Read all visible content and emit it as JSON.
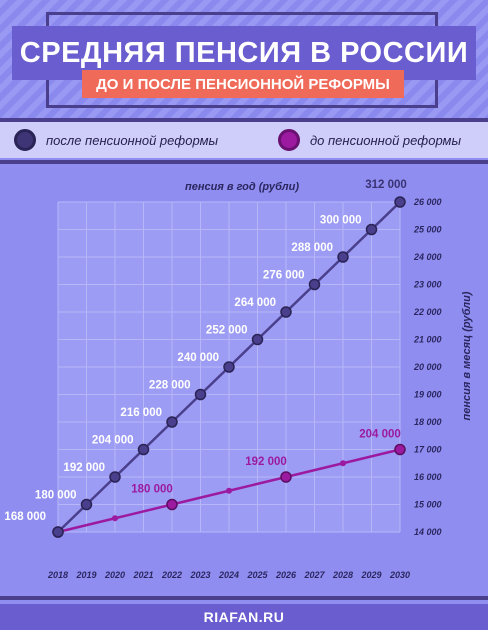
{
  "header": {
    "title": "СРЕДНЯЯ ПЕНСИЯ В РОССИИ",
    "subtitle": "ДО И ПОСЛЕ ПЕНСИОННОЙ РЕФОРМЫ"
  },
  "legend": {
    "after": "после пенсионной реформы",
    "before": "до пенсионной реформы"
  },
  "footer": {
    "source": "RIAFAN.RU"
  },
  "colors": {
    "after": "#4a3f8c",
    "before": "#9b1aa0",
    "background": "#8f8ef0",
    "title_box": "#6a5dcf",
    "subtitle_box": "#f06a5a"
  },
  "chart_data": {
    "type": "line",
    "xlabel": "",
    "ylabel_left": "пенсия в год (рубли)",
    "ylabel_right": "пенсия в месяц (рубли)",
    "x": [
      2018,
      2019,
      2020,
      2021,
      2022,
      2023,
      2024,
      2025,
      2026,
      2027,
      2028,
      2029,
      2030
    ],
    "x_tick_labels": [
      "2018",
      "2019",
      "2020",
      "2021",
      "2022",
      "2023",
      "2024",
      "2025",
      "2026",
      "2027",
      "2028",
      "2029",
      "2030"
    ],
    "y_right_ticks": [
      14000,
      15000,
      16000,
      17000,
      18000,
      19000,
      20000,
      21000,
      22000,
      23000,
      24000,
      25000,
      26000
    ],
    "y_right_tick_labels": [
      "14 000",
      "15 000",
      "16 000",
      "17 000",
      "18 000",
      "19 000",
      "20 000",
      "21 000",
      "22 000",
      "23 000",
      "24 000",
      "25 000",
      "26 000"
    ],
    "ylim_monthly": [
      14000,
      26000
    ],
    "grid": true,
    "series": [
      {
        "name": "после пенсионной реформы",
        "monthly": [
          14000,
          15000,
          16000,
          17000,
          18000,
          19000,
          20000,
          21000,
          22000,
          23000,
          24000,
          25000,
          26000
        ],
        "labels": [
          "168 000",
          "180 000",
          "192 000",
          "204 000",
          "216 000",
          "228 000",
          "240 000",
          "252 000",
          "264 000",
          "276 000",
          "288 000",
          "300 000",
          "312 000"
        ]
      },
      {
        "name": "до пенсионной реформы",
        "points": [
          {
            "x": 2018,
            "monthly": 14000,
            "label": ""
          },
          {
            "x": 2020,
            "monthly": 14500,
            "label": ""
          },
          {
            "x": 2022,
            "monthly": 15000,
            "label": "180 000"
          },
          {
            "x": 2024,
            "monthly": 15500,
            "label": ""
          },
          {
            "x": 2026,
            "monthly": 16000,
            "label": "192 000"
          },
          {
            "x": 2028,
            "monthly": 16500,
            "label": ""
          },
          {
            "x": 2030,
            "monthly": 17000,
            "label": "204 000"
          }
        ]
      }
    ]
  }
}
